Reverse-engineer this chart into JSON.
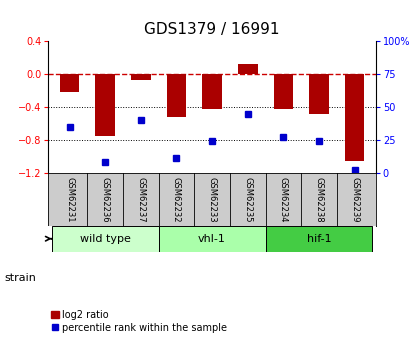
{
  "title": "GDS1379 / 16991",
  "samples": [
    "GSM62231",
    "GSM62236",
    "GSM62237",
    "GSM62232",
    "GSM62233",
    "GSM62235",
    "GSM62234",
    "GSM62238",
    "GSM62239"
  ],
  "log2_ratio": [
    -0.22,
    -0.75,
    -0.07,
    -0.52,
    -0.42,
    0.12,
    -0.42,
    -0.48,
    -1.05
  ],
  "percentile_rank": [
    35,
    8,
    40,
    11,
    24,
    45,
    27,
    24,
    2
  ],
  "groups": [
    {
      "label": "wild type",
      "start": 0,
      "end": 3,
      "color": "#ccffcc"
    },
    {
      "label": "vhl-1",
      "start": 3,
      "end": 6,
      "color": "#aaffaa"
    },
    {
      "label": "hif-1",
      "start": 6,
      "end": 9,
      "color": "#44cc44"
    }
  ],
  "ylim_left": [
    -1.2,
    0.4
  ],
  "ylim_right": [
    0,
    100
  ],
  "bar_color": "#aa0000",
  "dot_color": "#0000cc",
  "hline_color": "#cc0000",
  "grid_color": "#000000",
  "bg_color": "#ffffff",
  "sample_bg": "#cccccc",
  "title_fontsize": 11,
  "tick_fontsize": 7,
  "sample_fontsize": 6,
  "group_fontsize": 8,
  "legend_fontsize": 7
}
